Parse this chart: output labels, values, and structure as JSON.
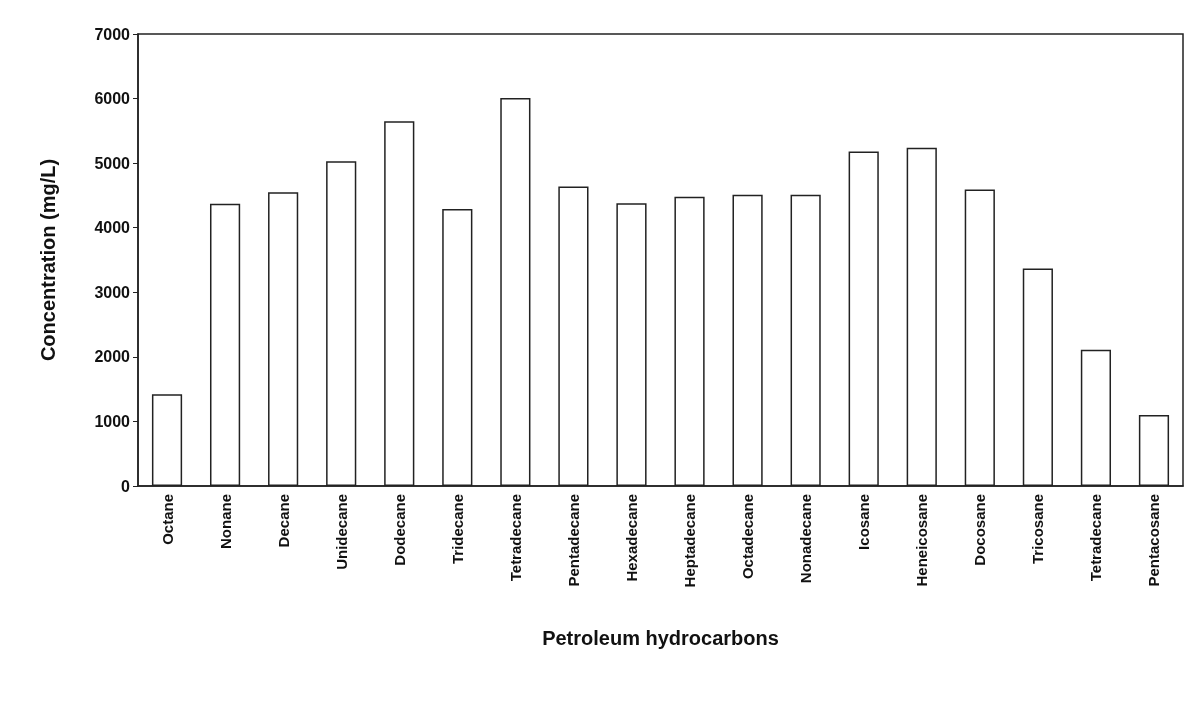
{
  "chart_data": {
    "type": "bar",
    "xlabel": "Petroleum hydrocarbons",
    "ylabel": "Concentration (mg/L)",
    "categories": [
      "Octane",
      "Nonane",
      "Decane",
      "Unidecane",
      "Dodecane",
      "Tridecane",
      "Tetradecane",
      "Pentadecane",
      "Hexadecane",
      "Heptadecane",
      "Octadecane",
      "Nonadecane",
      "Icosane",
      "Heneicosane",
      "Docosane",
      "Tricosane",
      "Tetradecane",
      "Pentacosane"
    ],
    "values": [
      1420,
      4370,
      4550,
      5030,
      5650,
      4290,
      6010,
      4640,
      4380,
      4480,
      4510,
      4510,
      5180,
      5240,
      4590,
      3370,
      2110,
      1100
    ],
    "color": "#ffffff",
    "ylim": [
      0,
      7000
    ],
    "yticks": [
      0,
      1000,
      2000,
      3000,
      4000,
      5000,
      6000,
      7000
    ],
    "grid": false
  }
}
